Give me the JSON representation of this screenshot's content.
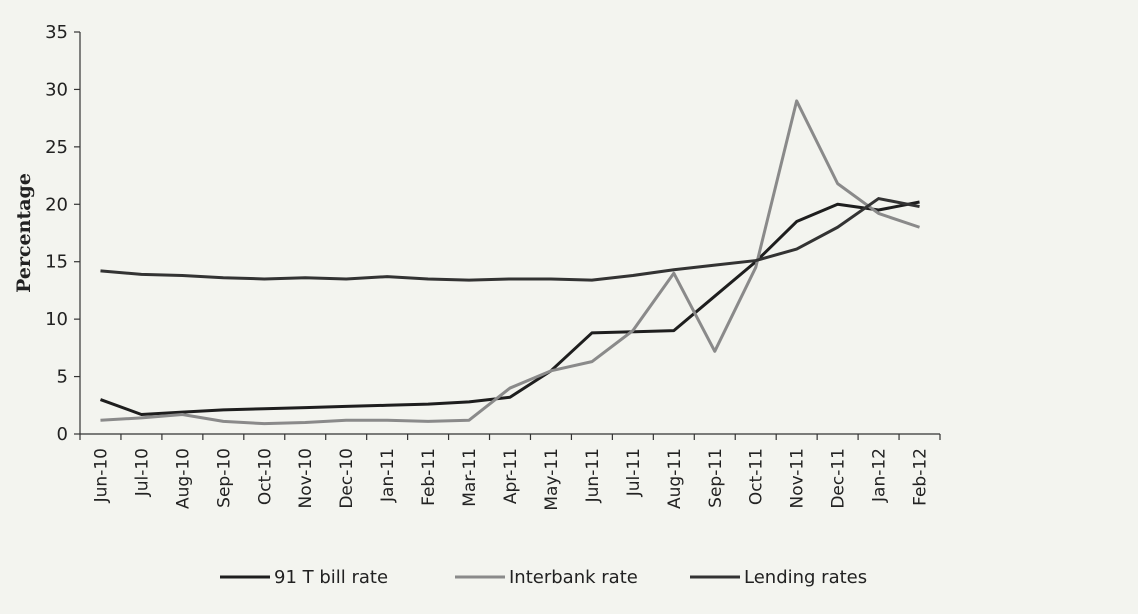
{
  "chart_data": {
    "type": "line",
    "y_label": "Percentage",
    "categories": [
      "Jun-10",
      "Jul-10",
      "Aug-10",
      "Sep-10",
      "Oct-10",
      "Nov-10",
      "Dec-10",
      "Jan-11",
      "Feb-11",
      "Mar-11",
      "Apr-11",
      "May-11",
      "Jun-11",
      "Jul-11",
      "Aug-11",
      "Sep-11",
      "Oct-11",
      "Nov-11",
      "Dec-11",
      "Jan-12",
      "Feb-12"
    ],
    "series": [
      {
        "name": "91 T bill rate",
        "color": "#1e1e1e",
        "values": [
          3.0,
          1.7,
          1.9,
          2.1,
          2.2,
          2.3,
          2.4,
          2.5,
          2.6,
          2.8,
          3.2,
          5.5,
          8.8,
          8.9,
          9.0,
          12.0,
          15.0,
          18.5,
          20.0,
          19.5,
          20.2
        ]
      },
      {
        "name": "Interbank rate",
        "color": "#8a8a8a",
        "values": [
          1.2,
          1.4,
          1.7,
          1.1,
          0.9,
          1.0,
          1.2,
          1.2,
          1.1,
          1.2,
          4.0,
          5.5,
          6.3,
          9.0,
          14.0,
          7.2,
          14.5,
          29.0,
          21.8,
          19.2,
          18.0
        ]
      },
      {
        "name": "Lending rates",
        "color": "#333333",
        "values": [
          14.2,
          13.9,
          13.8,
          13.6,
          13.5,
          13.6,
          13.5,
          13.7,
          13.5,
          13.4,
          13.5,
          13.5,
          13.4,
          13.8,
          14.3,
          14.7,
          15.1,
          16.1,
          18.0,
          20.5,
          19.8
        ]
      }
    ],
    "ylim": [
      0,
      35
    ],
    "yticks": [
      0,
      5,
      10,
      15,
      20,
      25,
      30,
      35
    ],
    "legend": "bottom"
  }
}
